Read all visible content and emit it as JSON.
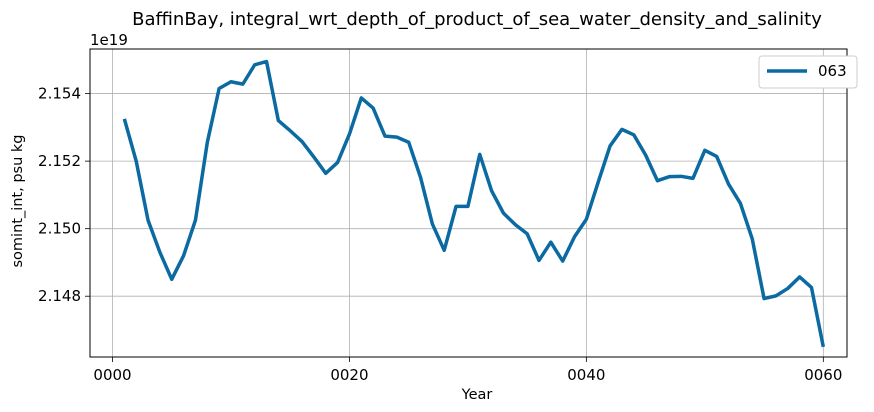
{
  "chart_data": {
    "type": "line",
    "title": "BaffinBay, integral_wrt_depth_of_product_of_sea_water_density_and_salinity",
    "xlabel": "Year",
    "ylabel": "somint_int, psu kg",
    "offset_text": "1e19",
    "xlim": [
      -1.9,
      62.0
    ],
    "ylim": [
      2.1462,
      2.15532
    ],
    "x_ticks": [
      {
        "value": 0,
        "label": "0000"
      },
      {
        "value": 20,
        "label": "0020"
      },
      {
        "value": 40,
        "label": "0040"
      },
      {
        "value": 60,
        "label": "0060"
      }
    ],
    "y_ticks": [
      {
        "value": 2.148,
        "label": "2.148"
      },
      {
        "value": 2.15,
        "label": "2.150"
      },
      {
        "value": 2.152,
        "label": "2.152"
      },
      {
        "value": 2.154,
        "label": "2.154"
      }
    ],
    "grid": true,
    "legend": "top-right",
    "color": "#0a6aa1",
    "series": [
      {
        "name": "063",
        "x": [
          1,
          2,
          3,
          4,
          5,
          6,
          7,
          8,
          9,
          10,
          11,
          12,
          13,
          14,
          15,
          16,
          17,
          18,
          19,
          20,
          21,
          22,
          23,
          24,
          25,
          26,
          27,
          28,
          29,
          30,
          31,
          32,
          33,
          34,
          35,
          36,
          37,
          38,
          39,
          40,
          41,
          42,
          43,
          44,
          45,
          46,
          47,
          48,
          49,
          50,
          51,
          52,
          53,
          54,
          55,
          56,
          57,
          58,
          59,
          60
        ],
        "values": [
          2.15325,
          2.152,
          2.15025,
          2.1493,
          2.1485,
          2.1492,
          2.15025,
          2.15255,
          2.15415,
          2.15435,
          2.15428,
          2.15485,
          2.15495,
          2.1532,
          2.1529,
          2.15258,
          2.15212,
          2.15164,
          2.15196,
          2.1528,
          2.15387,
          2.15357,
          2.15274,
          2.15271,
          2.15256,
          2.15152,
          2.15014,
          2.14936,
          2.15066,
          2.15066,
          2.1522,
          2.15112,
          2.15046,
          2.15012,
          2.14985,
          2.14906,
          2.1496,
          2.14904,
          2.14976,
          2.15028,
          2.15138,
          2.15245,
          2.15294,
          2.15278,
          2.15218,
          2.15142,
          2.15154,
          2.15155,
          2.15149,
          2.15232,
          2.15214,
          2.15132,
          2.15075,
          2.1497,
          2.14793,
          2.14801,
          2.14823,
          2.14857,
          2.14826,
          2.1465
        ]
      }
    ]
  }
}
